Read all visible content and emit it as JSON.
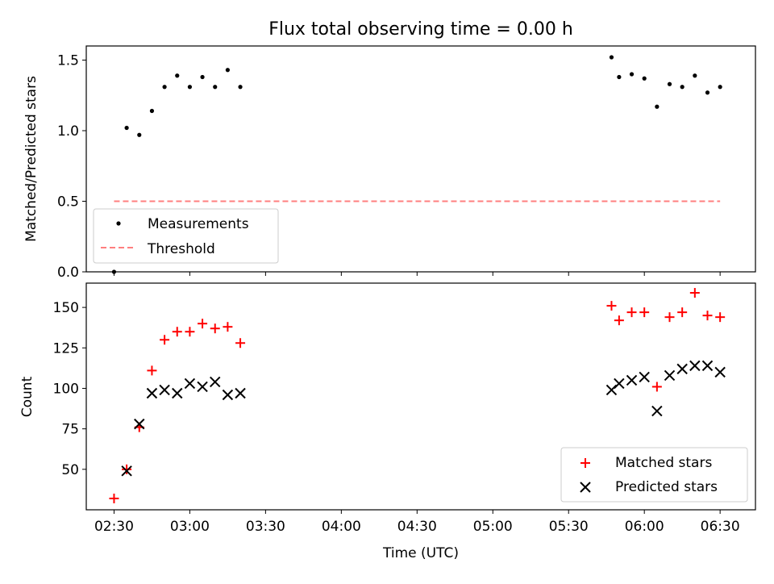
{
  "chart_data": [
    {
      "type": "scatter",
      "title": "Flux total observing time = 0.00 h",
      "ylabel": "Matched/Predicted stars",
      "xlabel": "",
      "xlim": [
        "02:19",
        "06:44"
      ],
      "ylim": [
        0,
        1.6
      ],
      "yticks": [
        0.0,
        0.5,
        1.0,
        1.5
      ],
      "ytick_labels": [
        "0.0",
        "0.5",
        "1.0",
        "1.5"
      ],
      "legend": {
        "position": "lower-left",
        "entries": [
          "Measurements",
          "Threshold"
        ]
      },
      "series": [
        {
          "name": "Measurements",
          "marker": "dot",
          "color": "#000000",
          "points": [
            [
              "02:30",
              0.0
            ],
            [
              "02:35",
              1.02
            ],
            [
              "02:40",
              0.97
            ],
            [
              "02:45",
              1.14
            ],
            [
              "02:50",
              1.31
            ],
            [
              "02:55",
              1.39
            ],
            [
              "03:00",
              1.31
            ],
            [
              "03:05",
              1.38
            ],
            [
              "03:10",
              1.31
            ],
            [
              "03:15",
              1.43
            ],
            [
              "03:20",
              1.31
            ],
            [
              "05:47",
              1.52
            ],
            [
              "05:50",
              1.38
            ],
            [
              "05:55",
              1.4
            ],
            [
              "06:00",
              1.37
            ],
            [
              "06:05",
              1.17
            ],
            [
              "06:10",
              1.33
            ],
            [
              "06:15",
              1.31
            ],
            [
              "06:20",
              1.39
            ],
            [
              "06:25",
              1.27
            ],
            [
              "06:30",
              1.31
            ]
          ]
        },
        {
          "name": "Threshold",
          "line": "dashed",
          "color": "#ff7f7f",
          "points": [
            [
              "02:30",
              0.5
            ],
            [
              "06:30",
              0.5
            ]
          ]
        }
      ]
    },
    {
      "type": "scatter",
      "title": "",
      "ylabel": "Count",
      "xlabel": "Time (UTC)",
      "xlim": [
        "02:19",
        "06:44"
      ],
      "ylim": [
        25,
        165
      ],
      "yticks": [
        50,
        75,
        100,
        125,
        150
      ],
      "xtick_labels": [
        "02:30",
        "03:00",
        "03:30",
        "04:00",
        "04:30",
        "05:00",
        "05:30",
        "06:00",
        "06:30"
      ],
      "legend": {
        "position": "lower-right",
        "entries": [
          "Matched stars",
          "Predicted stars"
        ]
      },
      "series": [
        {
          "name": "Matched stars",
          "marker": "plus",
          "color": "#ff0000",
          "points": [
            [
              "02:30",
              32
            ],
            [
              "02:35",
              50
            ],
            [
              "02:40",
              76
            ],
            [
              "02:45",
              111
            ],
            [
              "02:50",
              130
            ],
            [
              "02:55",
              135
            ],
            [
              "03:00",
              135
            ],
            [
              "03:05",
              140
            ],
            [
              "03:10",
              137
            ],
            [
              "03:15",
              138
            ],
            [
              "03:20",
              128
            ],
            [
              "05:47",
              151
            ],
            [
              "05:50",
              142
            ],
            [
              "05:55",
              147
            ],
            [
              "06:00",
              147
            ],
            [
              "06:05",
              101
            ],
            [
              "06:10",
              144
            ],
            [
              "06:15",
              147
            ],
            [
              "06:20",
              159
            ],
            [
              "06:25",
              145
            ],
            [
              "06:30",
              144
            ]
          ]
        },
        {
          "name": "Predicted stars",
          "marker": "x",
          "color": "#000000",
          "points": [
            [
              "02:35",
              49
            ],
            [
              "02:40",
              78
            ],
            [
              "02:45",
              97
            ],
            [
              "02:50",
              99
            ],
            [
              "02:55",
              97
            ],
            [
              "03:00",
              103
            ],
            [
              "03:05",
              101
            ],
            [
              "03:10",
              104
            ],
            [
              "03:15",
              96
            ],
            [
              "03:20",
              97
            ],
            [
              "05:47",
              99
            ],
            [
              "05:50",
              103
            ],
            [
              "05:55",
              105
            ],
            [
              "06:00",
              107
            ],
            [
              "06:05",
              86
            ],
            [
              "06:10",
              108
            ],
            [
              "06:15",
              112
            ],
            [
              "06:20",
              114
            ],
            [
              "06:25",
              114
            ],
            [
              "06:30",
              110
            ]
          ]
        }
      ]
    }
  ]
}
